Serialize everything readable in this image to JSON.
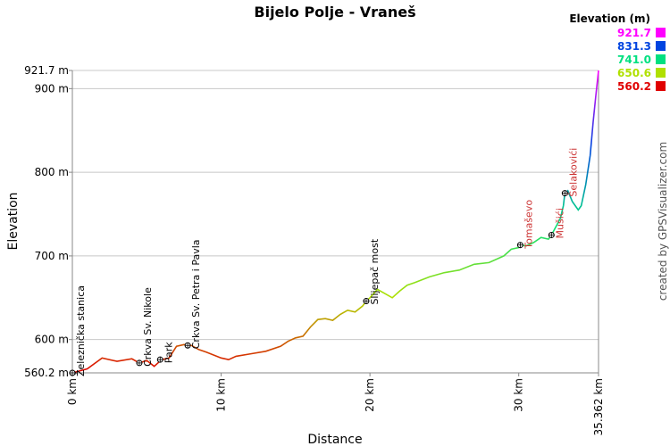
{
  "chart_data": {
    "type": "elevation-profile",
    "title": "Bijelo Polje - Vraneš",
    "x_label": "Distance",
    "y_label": "Elevation",
    "credit": "created by GPSVisualizer.com",
    "legend_title": "Elevation (m)",
    "legend_position": "top-right",
    "grid": true,
    "xlim": [
      0,
      35.362
    ],
    "ylim": [
      560.2,
      921.7
    ],
    "xticks": [
      {
        "value": 0,
        "label": "0 km"
      },
      {
        "value": 10,
        "label": "10 km"
      },
      {
        "value": 20,
        "label": "20 km"
      },
      {
        "value": 30,
        "label": "30 km"
      },
      {
        "value": 35.362,
        "label": "35.362 km"
      }
    ],
    "yticks": [
      {
        "value": 560.2,
        "label": "560.2 m"
      },
      {
        "value": 600,
        "label": "600 m"
      },
      {
        "value": 700,
        "label": "700 m"
      },
      {
        "value": 800,
        "label": "800 m"
      },
      {
        "value": 900,
        "label": "900 m"
      },
      {
        "value": 921.7,
        "label": "921.7 m"
      }
    ],
    "color_scale": [
      {
        "value": 921.7,
        "label": "921.7",
        "color": "#ff00ff"
      },
      {
        "value": 831.3,
        "label": "831.3",
        "color": "#0044e0"
      },
      {
        "value": 741.0,
        "label": "741.0",
        "color": "#00e080"
      },
      {
        "value": 650.6,
        "label": "650.6",
        "color": "#b0e000"
      },
      {
        "value": 560.2,
        "label": "560.2",
        "color": "#e00000"
      }
    ],
    "x": [
      0,
      1,
      2,
      3,
      4,
      4.5,
      5,
      5.5,
      6,
      6.5,
      7,
      7.5,
      8,
      8.5,
      9,
      10,
      10.5,
      11,
      12,
      13,
      14,
      14.5,
      15,
      15.5,
      16,
      16.5,
      17,
      17.5,
      18,
      18.5,
      19,
      19.5,
      19.75,
      20,
      20.5,
      21,
      21.5,
      22,
      22.5,
      23,
      24,
      25,
      26,
      27,
      28,
      29,
      29.5,
      30,
      30.1,
      30.5,
      31,
      31.5,
      32,
      32.2,
      32.5,
      32.8,
      33,
      33.1,
      33.3,
      33.6,
      34,
      34.2,
      34.5,
      34.8,
      35,
      35.2,
      35.362
    ],
    "values": [
      560.2,
      565,
      578,
      574,
      577,
      572,
      575,
      568,
      576,
      578,
      592,
      594,
      593,
      588,
      585,
      578,
      576,
      580,
      583,
      586,
      592,
      598,
      602,
      604,
      615,
      624,
      625,
      623,
      630,
      635,
      633,
      640,
      646,
      650,
      660,
      655,
      650,
      658,
      665,
      668,
      675,
      680,
      683,
      690,
      692,
      700,
      708,
      710,
      713,
      712,
      716,
      722,
      720,
      725,
      735,
      745,
      760,
      775,
      778,
      765,
      755,
      760,
      785,
      820,
      860,
      895,
      921.7
    ],
    "waypoint_label_colors": [
      "#000000",
      "#cc3333"
    ],
    "waypoints": [
      {
        "name": "Železnička stanica",
        "x": 0,
        "elevation": 560.2,
        "style": 0
      },
      {
        "name": "Crkva Sv. Nikole",
        "x": 4.5,
        "elevation": 572,
        "style": 0
      },
      {
        "name": "Park",
        "x": 5.9,
        "elevation": 576,
        "style": 0
      },
      {
        "name": "Crkva Sv. Petra i Pavla",
        "x": 7.75,
        "elevation": 593,
        "style": 0
      },
      {
        "name": "Slijepač most",
        "x": 19.75,
        "elevation": 646,
        "style": 0
      },
      {
        "name": "Tomaševo",
        "x": 30.1,
        "elevation": 713,
        "style": 1
      },
      {
        "name": "Mušići",
        "x": 32.2,
        "elevation": 725,
        "style": 1
      },
      {
        "name": "Šelakovići",
        "x": 33.1,
        "elevation": 775,
        "style": 1
      }
    ]
  }
}
